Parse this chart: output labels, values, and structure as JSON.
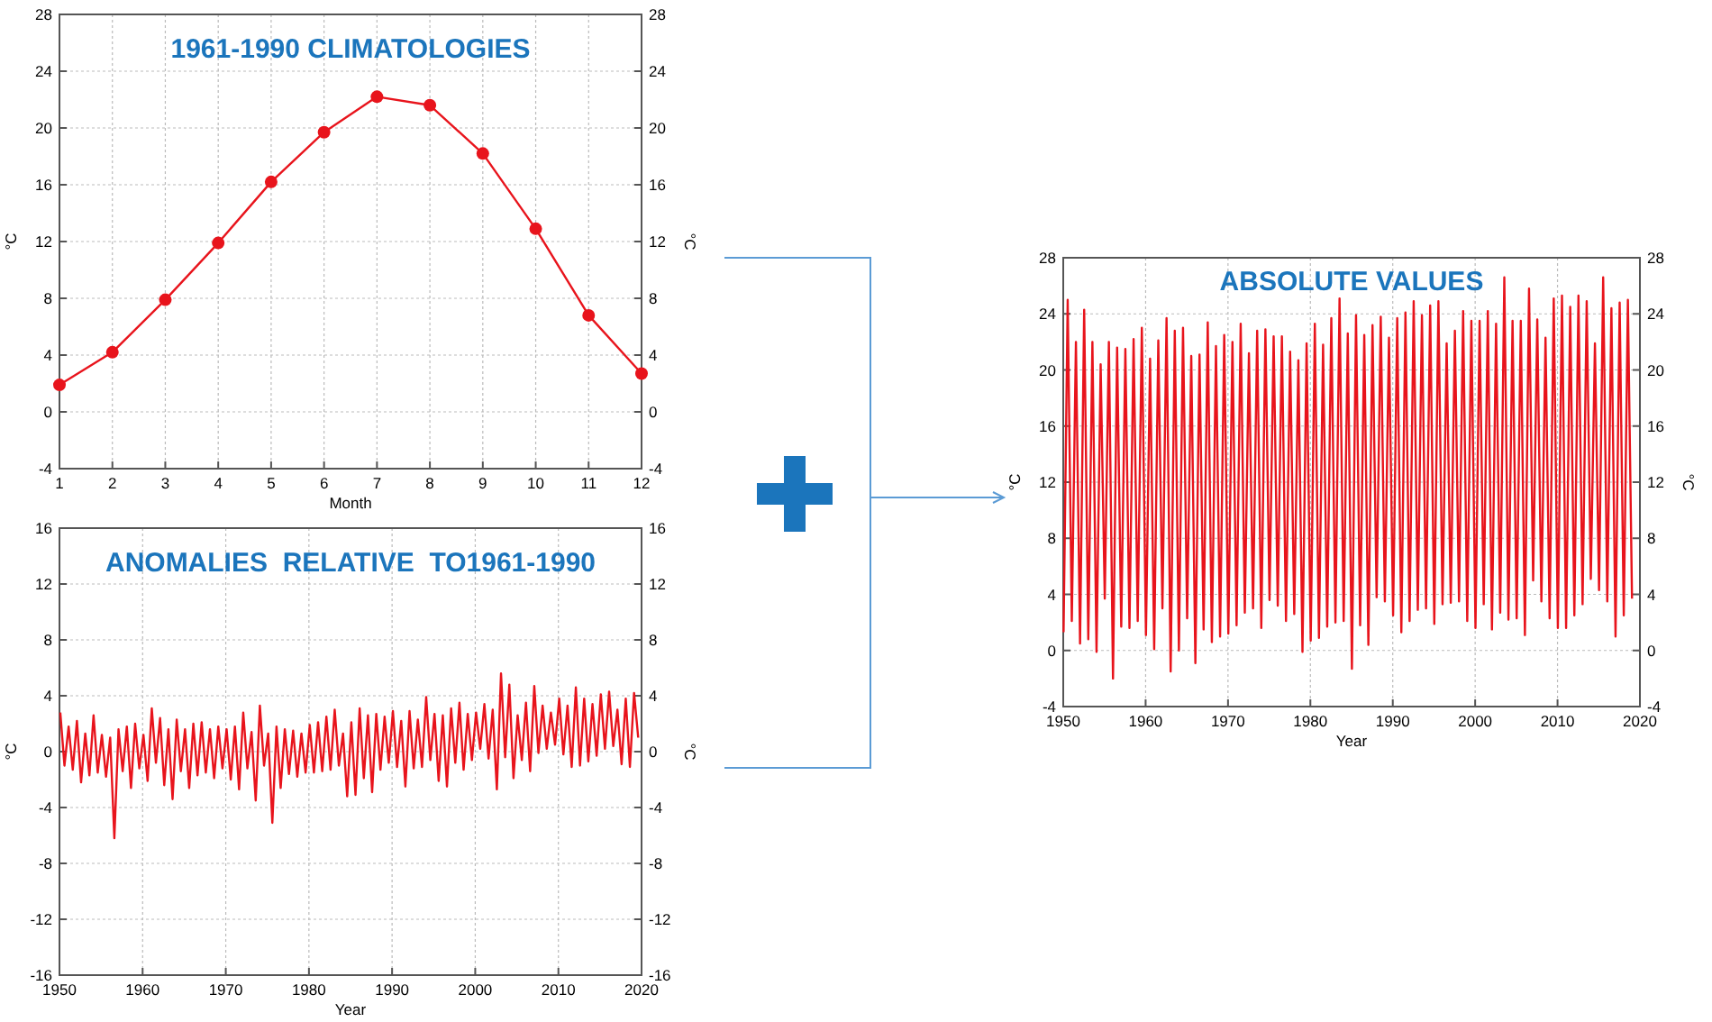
{
  "chart_data": [
    {
      "type": "line",
      "title": "1961-1990 CLIMATOLOGIES",
      "xlabel": "Month",
      "ylabel": "°C",
      "y2label": "°C",
      "x": [
        1,
        2,
        3,
        4,
        5,
        6,
        7,
        8,
        9,
        10,
        11,
        12
      ],
      "series": [
        {
          "color": "#e8141c",
          "values": [
            1.9,
            4.2,
            7.9,
            11.9,
            16.2,
            19.7,
            22.2,
            21.6,
            18.2,
            12.9,
            6.8,
            2.7
          ]
        }
      ],
      "xlim": [
        1,
        12
      ],
      "xticks": [
        1,
        2,
        3,
        4,
        5,
        6,
        7,
        8,
        9,
        10,
        11,
        12
      ],
      "ylim": [
        -4,
        28
      ],
      "yticks": [
        -4,
        0,
        4,
        8,
        12,
        16,
        20,
        24,
        28
      ],
      "y2lim": [
        -4,
        28
      ],
      "y2ticks": [
        -4,
        0,
        4,
        8,
        12,
        16,
        20,
        24,
        28
      ],
      "grid": true,
      "marker": "circle",
      "line_style": "solid"
    },
    {
      "type": "line",
      "title": "ANOMALIES  RELATIVE  TO1961-1990",
      "xlabel": "Year",
      "ylabel": "°C",
      "y2label": "°C",
      "x": [
        1950.1,
        1950.6,
        1951.1,
        1951.6,
        1952.1,
        1952.6,
        1953.1,
        1953.6,
        1954.1,
        1954.6,
        1955.1,
        1955.6,
        1956.1,
        1956.6,
        1957.1,
        1957.6,
        1958.1,
        1958.6,
        1959.1,
        1959.6,
        1960.1,
        1960.6,
        1961.1,
        1961.6,
        1962.1,
        1962.6,
        1963.1,
        1963.6,
        1964.1,
        1964.6,
        1965.1,
        1965.6,
        1966.1,
        1966.6,
        1967.1,
        1967.6,
        1968.1,
        1968.6,
        1969.1,
        1969.6,
        1970.1,
        1970.6,
        1971.1,
        1971.6,
        1972.1,
        1972.6,
        1973.1,
        1973.6,
        1974.1,
        1974.6,
        1975.1,
        1975.6,
        1976.1,
        1976.6,
        1977.1,
        1977.6,
        1978.1,
        1978.6,
        1979.1,
        1979.6,
        1980.1,
        1980.6,
        1981.1,
        1981.6,
        1982.1,
        1982.6,
        1983.1,
        1983.6,
        1984.1,
        1984.6,
        1985.1,
        1985.6,
        1986.1,
        1986.6,
        1987.1,
        1987.6,
        1988.1,
        1988.6,
        1989.1,
        1989.6,
        1990.1,
        1990.6,
        1991.1,
        1991.6,
        1992.1,
        1992.6,
        1993.1,
        1993.6,
        1994.1,
        1994.6,
        1995.1,
        1995.6,
        1996.1,
        1996.6,
        1997.1,
        1997.6,
        1998.1,
        1998.6,
        1999.1,
        1999.6,
        2000.1,
        2000.6,
        2001.1,
        2001.6,
        2002.1,
        2002.6,
        2003.1,
        2003.6,
        2004.1,
        2004.6,
        2005.1,
        2005.6,
        2006.1,
        2006.6,
        2007.1,
        2007.6,
        2008.1,
        2008.6,
        2009.1,
        2009.6,
        2010.1,
        2010.6,
        2011.1,
        2011.6,
        2012.1,
        2012.6,
        2013.1,
        2013.6,
        2014.1,
        2014.6,
        2015.1,
        2015.6,
        2016.1,
        2016.6,
        2017.1,
        2017.6,
        2018.1,
        2018.6,
        2019.1,
        2019.6
      ],
      "series": [
        {
          "color": "#e8141c",
          "values": [
            2.8,
            -1.0,
            1.8,
            -1.3,
            2.2,
            -2.2,
            1.3,
            -1.7,
            2.6,
            -1.5,
            1.2,
            -1.8,
            1.0,
            -6.2,
            1.6,
            -1.4,
            1.8,
            -2.6,
            2.0,
            -1.2,
            1.2,
            -2.1,
            3.1,
            -0.8,
            2.4,
            -2.4,
            1.6,
            -3.4,
            2.3,
            -1.4,
            1.6,
            -2.6,
            2.0,
            -1.7,
            2.1,
            -1.5,
            1.6,
            -1.9,
            1.8,
            -1.2,
            1.6,
            -2.0,
            1.8,
            -2.7,
            2.8,
            -1.2,
            1.4,
            -3.5,
            3.3,
            -1.0,
            1.3,
            -5.1,
            1.8,
            -2.6,
            1.6,
            -1.6,
            1.5,
            -1.8,
            1.3,
            -1.5,
            1.9,
            -1.5,
            2.1,
            -1.4,
            2.5,
            -1.3,
            3.0,
            -1.0,
            1.3,
            -3.2,
            2.1,
            -3.1,
            3.1,
            -1.9,
            2.6,
            -2.9,
            2.7,
            -1.3,
            2.5,
            -0.8,
            2.9,
            -1.1,
            2.2,
            -2.5,
            2.9,
            -1.2,
            2.3,
            -1.1,
            3.9,
            -0.6,
            2.7,
            -2.1,
            2.6,
            -2.5,
            3.1,
            -0.8,
            3.5,
            -1.3,
            2.7,
            -0.6,
            2.8,
            0.2,
            3.4,
            -0.5,
            3.0,
            -2.7,
            5.6,
            -0.4,
            4.8,
            -1.9,
            2.6,
            -0.6,
            3.5,
            -1.4,
            4.7,
            -0.1,
            3.3,
            0.2,
            2.8,
            0.5,
            3.8,
            -0.2,
            3.3,
            -1.1,
            4.6,
            -1.0,
            3.8,
            -0.7,
            3.4,
            -0.3,
            4.1,
            0.2,
            4.3,
            0.4,
            3.0,
            -0.9,
            3.8,
            -1.1,
            4.2,
            1.0
          ]
        }
      ],
      "xlim": [
        1950,
        2020
      ],
      "xticks": [
        1950,
        1960,
        1970,
        1980,
        1990,
        2000,
        2010,
        2020
      ],
      "ylim": [
        -16,
        16
      ],
      "yticks": [
        -16,
        -12,
        -8,
        -4,
        0,
        4,
        8,
        12,
        16
      ],
      "y2lim": [
        -16,
        16
      ],
      "y2ticks": [
        -16,
        -12,
        -8,
        -4,
        0,
        4,
        8,
        12,
        16
      ],
      "grid": true,
      "marker": "none",
      "line_style": "solid"
    },
    {
      "type": "line",
      "title": "ABSOLUTE VALUES",
      "xlabel": "Year",
      "ylabel": "°C",
      "y2label": "°C",
      "x": [
        1950.04,
        1950.54,
        1951.04,
        1951.54,
        1952.04,
        1952.54,
        1953.04,
        1953.54,
        1954.04,
        1954.54,
        1955.04,
        1955.54,
        1956.04,
        1956.54,
        1957.04,
        1957.54,
        1958.04,
        1958.54,
        1959.04,
        1959.54,
        1960.04,
        1960.54,
        1961.04,
        1961.54,
        1962.04,
        1962.54,
        1963.04,
        1963.54,
        1964.04,
        1964.54,
        1965.04,
        1965.54,
        1966.04,
        1966.54,
        1967.04,
        1967.54,
        1968.04,
        1968.54,
        1969.04,
        1969.54,
        1970.04,
        1970.54,
        1971.04,
        1971.54,
        1972.04,
        1972.54,
        1973.04,
        1973.54,
        1974.04,
        1974.54,
        1975.04,
        1975.54,
        1976.04,
        1976.54,
        1977.04,
        1977.54,
        1978.04,
        1978.54,
        1979.04,
        1979.54,
        1980.04,
        1980.54,
        1981.04,
        1981.54,
        1982.04,
        1982.54,
        1983.04,
        1983.54,
        1984.04,
        1984.54,
        1985.04,
        1985.54,
        1986.04,
        1986.54,
        1987.04,
        1987.54,
        1988.04,
        1988.54,
        1989.04,
        1989.54,
        1990.04,
        1990.54,
        1991.04,
        1991.54,
        1992.04,
        1992.54,
        1993.04,
        1993.54,
        1994.04,
        1994.54,
        1995.04,
        1995.54,
        1996.04,
        1996.54,
        1997.04,
        1997.54,
        1998.04,
        1998.54,
        1999.04,
        1999.54,
        2000.04,
        2000.54,
        2001.04,
        2001.54,
        2002.04,
        2002.54,
        2003.04,
        2003.54,
        2004.04,
        2004.54,
        2005.04,
        2005.54,
        2006.04,
        2006.54,
        2007.04,
        2007.54,
        2008.04,
        2008.54,
        2009.04,
        2009.54,
        2010.04,
        2010.54,
        2011.04,
        2011.54,
        2012.04,
        2012.54,
        2013.04,
        2013.54,
        2014.04,
        2014.54,
        2015.04,
        2015.54,
        2016.04,
        2016.54,
        2017.04,
        2017.54,
        2018.04,
        2018.54,
        2019.04
      ],
      "series": [
        {
          "color": "#e8141c",
          "values": [
            1.3,
            25,
            2.1,
            22,
            0.5,
            24.3,
            0.8,
            22,
            -0.1,
            20.4,
            3.7,
            22,
            -2,
            21.6,
            1.7,
            21.5,
            1.6,
            22.2,
            2.1,
            23,
            1.1,
            20.8,
            0.1,
            22.1,
            3,
            23.7,
            -1.5,
            22.8,
            0,
            23,
            2.3,
            21,
            -0.9,
            21.1,
            1.5,
            23.4,
            0.6,
            21.7,
            1,
            22.5,
            1.2,
            22,
            1.8,
            23.3,
            2.7,
            21.2,
            3,
            22.8,
            1.6,
            22.9,
            3.6,
            22.4,
            3.2,
            22.4,
            2.1,
            21.3,
            2.6,
            20.7,
            -0.1,
            21.9,
            0.7,
            23.3,
            0.9,
            21.8,
            1.7,
            23.7,
            2,
            25.1,
            2.1,
            22.6,
            -1.3,
            23.9,
            1.8,
            22.5,
            0.4,
            23.2,
            3.8,
            23.8,
            3.5,
            22.3,
            2.5,
            23.7,
            1.3,
            24.1,
            2.1,
            24.9,
            2.9,
            23.9,
            3,
            24.6,
            1.9,
            24.9,
            3.3,
            21.9,
            3.4,
            22.8,
            3.5,
            24.2,
            2.1,
            23.5,
            1.6,
            23.5,
            3.3,
            24.2,
            1.5,
            23.3,
            2.7,
            26.6,
            2.2,
            23.5,
            2.3,
            23.5,
            1.1,
            25.8,
            5,
            23.6,
            3.5,
            22.3,
            2.3,
            25.1,
            1.6,
            25.3,
            1.6,
            24.5,
            2.5,
            25.3,
            3.3,
            24.9,
            5.1,
            21.9,
            4.3,
            26.6,
            3.5,
            24.4,
            1,
            24.8,
            2.5,
            25,
            3.7
          ]
        }
      ],
      "xlim": [
        1950,
        2020
      ],
      "xticks": [
        1950,
        1960,
        1970,
        1980,
        1990,
        2000,
        2010,
        2020
      ],
      "ylim": [
        -4,
        28
      ],
      "yticks": [
        -4,
        0,
        4,
        8,
        12,
        16,
        20,
        24,
        28
      ],
      "y2lim": [
        -4,
        28
      ],
      "y2ticks": [
        -4,
        0,
        4,
        8,
        12,
        16,
        20,
        24,
        28
      ],
      "grid": true,
      "marker": "none",
      "line_style": "solid"
    }
  ]
}
